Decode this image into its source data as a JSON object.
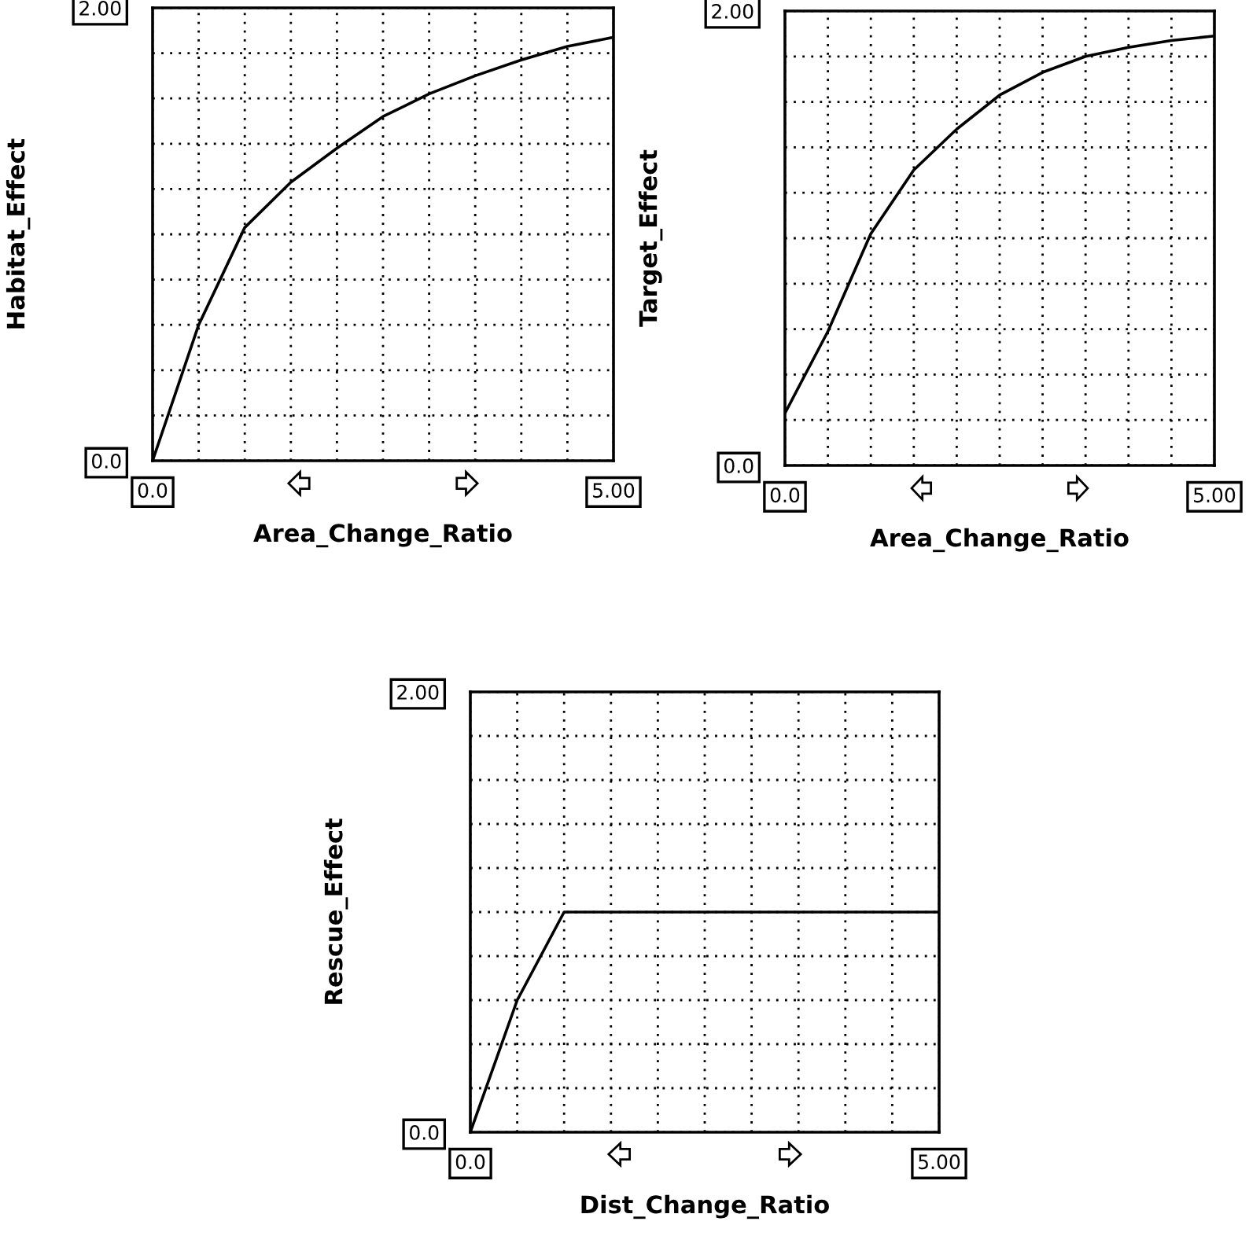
{
  "chart_data": [
    {
      "type": "line",
      "xlabel": "Area_Change_Ratio",
      "ylabel": "Habitat_Effect",
      "x": [
        0,
        0.5,
        1,
        1.5,
        2,
        2.5,
        3,
        3.5,
        4,
        4.5,
        5
      ],
      "series": [
        {
          "color": "#000000",
          "values": [
            0,
            0.6,
            1.03,
            1.23,
            1.38,
            1.52,
            1.62,
            1.7,
            1.77,
            1.83,
            1.87
          ]
        }
      ],
      "xlim": [
        0,
        5
      ],
      "ylim": [
        0,
        2
      ],
      "xticks": [
        {
          "value": 0,
          "label": "0.0"
        },
        {
          "value": 0.5,
          "label": null
        },
        {
          "value": 1,
          "label": null
        },
        {
          "value": 1.5,
          "label": null
        },
        {
          "value": 2,
          "label": null
        },
        {
          "value": 2.5,
          "label": null
        },
        {
          "value": 3,
          "label": null
        },
        {
          "value": 3.5,
          "label": null
        },
        {
          "value": 4,
          "label": null
        },
        {
          "value": 4.5,
          "label": null
        },
        {
          "value": 5,
          "label": "5.00"
        }
      ],
      "yticks": [
        {
          "value": 0,
          "label": "0.0"
        },
        {
          "value": 0.2,
          "label": null
        },
        {
          "value": 0.4,
          "label": null
        },
        {
          "value": 0.6,
          "label": null
        },
        {
          "value": 0.8,
          "label": null
        },
        {
          "value": 1,
          "label": null
        },
        {
          "value": 1.2,
          "label": null
        },
        {
          "value": 1.4,
          "label": null
        },
        {
          "value": 1.6,
          "label": null
        },
        {
          "value": 1.8,
          "label": null
        },
        {
          "value": 2,
          "label": "2.00"
        }
      ],
      "grid": true,
      "marker": "none",
      "line_style": "solid",
      "legend": false
    },
    {
      "type": "line",
      "xlabel": "Area_Change_Ratio",
      "ylabel": "Target_Effect",
      "x": [
        0,
        0.5,
        1,
        1.5,
        2,
        2.5,
        3,
        3.5,
        4,
        4.5,
        5
      ],
      "series": [
        {
          "color": "#000000",
          "values": [
            0.23,
            0.59,
            1.02,
            1.3,
            1.48,
            1.63,
            1.73,
            1.8,
            1.84,
            1.87,
            1.89
          ]
        }
      ],
      "xlim": [
        0,
        5
      ],
      "ylim": [
        0,
        2
      ],
      "xticks": [
        {
          "value": 0,
          "label": "0.0"
        },
        {
          "value": 0.5,
          "label": null
        },
        {
          "value": 1,
          "label": null
        },
        {
          "value": 1.5,
          "label": null
        },
        {
          "value": 2,
          "label": null
        },
        {
          "value": 2.5,
          "label": null
        },
        {
          "value": 3,
          "label": null
        },
        {
          "value": 3.5,
          "label": null
        },
        {
          "value": 4,
          "label": null
        },
        {
          "value": 4.5,
          "label": null
        },
        {
          "value": 5,
          "label": "5.00"
        }
      ],
      "yticks": [
        {
          "value": 0,
          "label": "0.0"
        },
        {
          "value": 0.2,
          "label": null
        },
        {
          "value": 0.4,
          "label": null
        },
        {
          "value": 0.6,
          "label": null
        },
        {
          "value": 0.8,
          "label": null
        },
        {
          "value": 1,
          "label": null
        },
        {
          "value": 1.2,
          "label": null
        },
        {
          "value": 1.4,
          "label": null
        },
        {
          "value": 1.6,
          "label": null
        },
        {
          "value": 1.8,
          "label": null
        },
        {
          "value": 2,
          "label": "2.00"
        }
      ],
      "grid": true,
      "marker": "none",
      "line_style": "solid",
      "legend": false
    },
    {
      "type": "line",
      "xlabel": "Dist_Change_Ratio",
      "ylabel": "Rescue_Effect",
      "x": [
        0,
        0.5,
        1,
        1.5,
        2,
        2.5,
        3,
        3.5,
        4,
        4.5,
        5
      ],
      "series": [
        {
          "color": "#000000",
          "values": [
            0,
            0.6,
            1.0,
            1.0,
            1.0,
            1.0,
            1.0,
            1.0,
            1.0,
            1.0,
            1.0
          ]
        }
      ],
      "xlim": [
        0,
        5
      ],
      "ylim": [
        0,
        2
      ],
      "xticks": [
        {
          "value": 0,
          "label": "0.0"
        },
        {
          "value": 0.5,
          "label": null
        },
        {
          "value": 1,
          "label": null
        },
        {
          "value": 1.5,
          "label": null
        },
        {
          "value": 2,
          "label": null
        },
        {
          "value": 2.5,
          "label": null
        },
        {
          "value": 3,
          "label": null
        },
        {
          "value": 3.5,
          "label": null
        },
        {
          "value": 4,
          "label": null
        },
        {
          "value": 4.5,
          "label": null
        },
        {
          "value": 5,
          "label": "5.00"
        }
      ],
      "yticks": [
        {
          "value": 0,
          "label": "0.0"
        },
        {
          "value": 0.2,
          "label": null
        },
        {
          "value": 0.4,
          "label": null
        },
        {
          "value": 0.6,
          "label": null
        },
        {
          "value": 0.8,
          "label": null
        },
        {
          "value": 1,
          "label": null
        },
        {
          "value": 1.2,
          "label": null
        },
        {
          "value": 1.4,
          "label": null
        },
        {
          "value": 1.6,
          "label": null
        },
        {
          "value": 1.8,
          "label": null
        },
        {
          "value": 2,
          "label": "2.00"
        }
      ],
      "grid": true,
      "marker": "none",
      "line_style": "solid",
      "legend": false
    }
  ]
}
